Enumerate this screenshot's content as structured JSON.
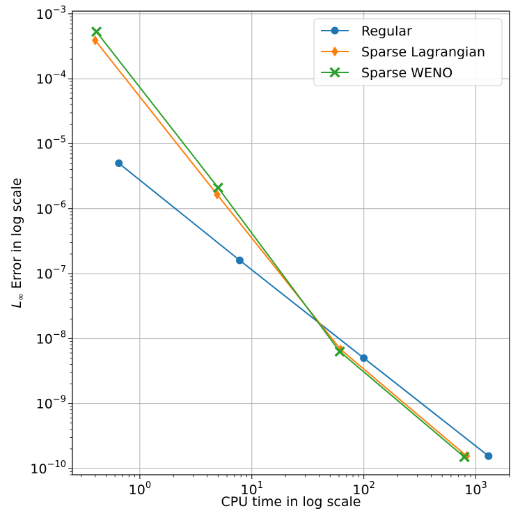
{
  "chart_data": {
    "type": "line",
    "xlabel": "CPU time in log scale",
    "ylabel_main": "L",
    "ylabel_sub": "∞",
    "ylabel_rest": " Error in log scale",
    "x_scale": "log",
    "y_scale": "log",
    "xlim": [
      0.25,
      2000
    ],
    "ylim": [
      8e-11,
      0.0011
    ],
    "grid": true,
    "legend_placement": "top-right",
    "x_ticks": [
      {
        "value": 1,
        "base": "10",
        "exp": "0"
      },
      {
        "value": 10,
        "base": "10",
        "exp": "1"
      },
      {
        "value": 100,
        "base": "10",
        "exp": "2"
      },
      {
        "value": 1000,
        "base": "10",
        "exp": "3"
      }
    ],
    "y_ticks": [
      {
        "value": 1e-10,
        "base": "10",
        "exp": "−10"
      },
      {
        "value": 1e-09,
        "base": "10",
        "exp": "−9"
      },
      {
        "value": 1e-08,
        "base": "10",
        "exp": "−8"
      },
      {
        "value": 1e-07,
        "base": "10",
        "exp": "−7"
      },
      {
        "value": 1e-06,
        "base": "10",
        "exp": "−6"
      },
      {
        "value": 1e-05,
        "base": "10",
        "exp": "−5"
      },
      {
        "value": 0.0001,
        "base": "10",
        "exp": "−4"
      },
      {
        "value": 0.001,
        "base": "10",
        "exp": "−3"
      }
    ],
    "series": [
      {
        "name": "Regular",
        "color": "#1f77b4",
        "marker": "circle",
        "x": [
          0.65,
          7.8,
          100,
          1300
        ],
        "y": [
          5e-06,
          1.6e-07,
          5e-09,
          1.55e-10
        ]
      },
      {
        "name": "Sparse Lagrangian",
        "color": "#ff7f0e",
        "marker": "diamond",
        "x": [
          0.4,
          4.9,
          62,
          830
        ],
        "y": [
          0.00039,
          1.65e-06,
          6.8e-09,
          1.55e-10
        ]
      },
      {
        "name": "Sparse WENO",
        "color": "#2ca02c",
        "marker": "x",
        "x": [
          0.41,
          5.0,
          61,
          790
        ],
        "y": [
          0.00053,
          2.1e-06,
          6.3e-09,
          1.5e-10
        ]
      }
    ]
  }
}
